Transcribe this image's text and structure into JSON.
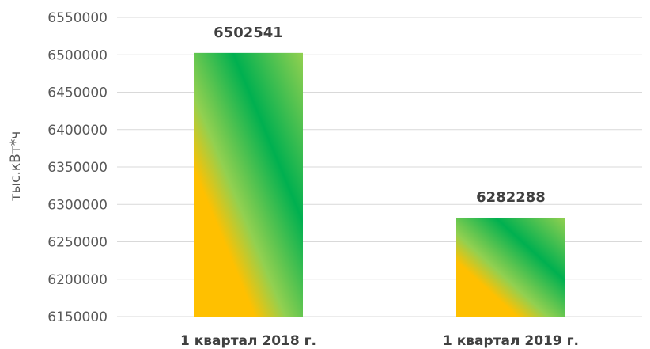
{
  "chart_data": {
    "type": "bar",
    "categories": [
      "1 квартал 2018 г.",
      "1 квартал 2019 г."
    ],
    "values": [
      6502541,
      6282288
    ],
    "data_labels": [
      "6502541",
      "6282288"
    ],
    "ylabel": "тыс.кВт*ч",
    "xlabel": "",
    "ylim": [
      6150000,
      6550000
    ],
    "yticks": [
      "6150000",
      "6200000",
      "6250000",
      "6300000",
      "6350000",
      "6400000",
      "6450000",
      "6500000",
      "6550000"
    ],
    "grid": true,
    "legend": "none",
    "colors": {
      "bar_gold": "#FFC000",
      "bar_green": "#00B050",
      "bar_light_green": "#92D050"
    }
  }
}
